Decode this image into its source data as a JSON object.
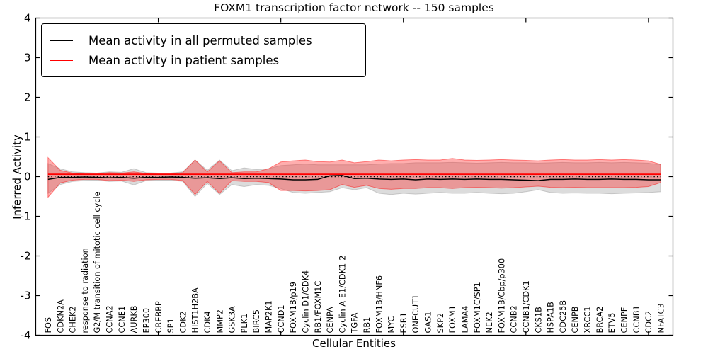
{
  "chart_data": {
    "type": "line",
    "title": "FOXM1 transcription factor network -- 150 samples",
    "xlabel": "Cellular Entities",
    "ylabel": "Inferred Activity",
    "ylim": [
      -4,
      4
    ],
    "xlim": [
      0,
      52
    ],
    "grid": false,
    "legend_position": "upper left",
    "yticks": [
      "4",
      "3",
      "2",
      "1",
      "0",
      "-1",
      "-2",
      "-3",
      "-4"
    ],
    "xticks": [
      10,
      20,
      30,
      40,
      50
    ],
    "zero_line": {
      "y": 0,
      "style": "dotted",
      "color": "#000000"
    },
    "categories": [
      "FOS",
      "CDKN2A",
      "CHEK2",
      "response to radiation",
      "G2/M transition of mitotic cell cycle",
      "CCNA2",
      "CCNE1",
      "AURKB",
      "EP300",
      "CREBBP",
      "SP1",
      "CDK2",
      "HIST1H2BA",
      "CDK4",
      "MMP2",
      "GSK3A",
      "PLK1",
      "BIRC5",
      "MAP2K1",
      "CCND1",
      "FOXM1B/p19",
      "Cyclin D1/CDK4",
      "RB1/FOXM1C",
      "CENPA",
      "Cyclin A-E1/CDK1-2",
      "TGFA",
      "RB1",
      "FOXM1B/HNF6",
      "MYC",
      "ESR1",
      "ONECUT1",
      "GAS1",
      "SKP2",
      "FOXM1",
      "LAMA4",
      "FOXM1C/SP1",
      "NEK2",
      "FOXM1B/Cbp/p300",
      "CCNB2",
      "CCNB1/CDK1",
      "CKS1B",
      "HSPA1B",
      "CDC25B",
      "CENPB",
      "XRCC1",
      "BRCA2",
      "ETV5",
      "CENPF",
      "CCNB1",
      "CDC2",
      "NFATC3"
    ],
    "series": [
      {
        "name": "Mean activity in all permuted samples",
        "color": "#000000",
        "values": [
          -0.07,
          -0.02,
          -0.02,
          -0.01,
          -0.02,
          -0.03,
          -0.02,
          -0.04,
          -0.02,
          -0.02,
          -0.01,
          -0.02,
          -0.04,
          -0.03,
          -0.05,
          -0.03,
          -0.05,
          -0.04,
          -0.05,
          -0.06,
          -0.08,
          -0.08,
          -0.07,
          0.02,
          0.03,
          -0.05,
          -0.04,
          -0.06,
          -0.07,
          -0.06,
          -0.08,
          -0.06,
          -0.07,
          -0.06,
          -0.07,
          -0.06,
          -0.07,
          -0.07,
          -0.08,
          -0.09,
          -0.1,
          -0.07,
          -0.07,
          -0.06,
          -0.07,
          -0.07,
          -0.06,
          -0.07,
          -0.07,
          -0.08,
          -0.08
        ]
      },
      {
        "name": "Mean activity in patient samples",
        "color": "#ff0000",
        "values": [
          0.06,
          0.06,
          0.06,
          0.06,
          0.06,
          0.06,
          0.06,
          0.06,
          0.06,
          0.06,
          0.06,
          0.06,
          0.06,
          0.06,
          0.06,
          0.06,
          0.06,
          0.06,
          0.06,
          0.06,
          0.06,
          0.06,
          0.06,
          0.06,
          0.06,
          0.06,
          0.06,
          0.06,
          0.06,
          0.06,
          0.06,
          0.06,
          0.06,
          0.06,
          0.06,
          0.06,
          0.06,
          0.06,
          0.06,
          0.06,
          0.06,
          0.06,
          0.06,
          0.06,
          0.06,
          0.06,
          0.06,
          0.06,
          0.06,
          0.06,
          0.06
        ]
      }
    ],
    "bands": [
      {
        "name": "permuted-range",
        "color": "#bfbfbf",
        "opacity": 0.55,
        "edge": "#aaaaaa",
        "edge_opacity": 0.6,
        "upper": [
          0.33,
          0.2,
          0.12,
          0.1,
          0.09,
          0.12,
          0.11,
          0.2,
          0.1,
          0.09,
          0.09,
          0.12,
          0.42,
          0.16,
          0.42,
          0.15,
          0.22,
          0.18,
          0.2,
          0.28,
          0.3,
          0.32,
          0.3,
          0.3,
          0.3,
          0.3,
          0.3,
          0.32,
          0.33,
          0.33,
          0.35,
          0.35,
          0.35,
          0.36,
          0.35,
          0.34,
          0.35,
          0.36,
          0.35,
          0.35,
          0.34,
          0.35,
          0.36,
          0.35,
          0.35,
          0.36,
          0.35,
          0.36,
          0.35,
          0.34,
          0.3
        ],
        "lower": [
          -0.42,
          -0.2,
          -0.12,
          -0.1,
          -0.09,
          -0.12,
          -0.11,
          -0.21,
          -0.1,
          -0.09,
          -0.09,
          -0.12,
          -0.5,
          -0.17,
          -0.45,
          -0.2,
          -0.25,
          -0.2,
          -0.22,
          -0.3,
          -0.4,
          -0.42,
          -0.4,
          -0.38,
          -0.28,
          -0.33,
          -0.28,
          -0.42,
          -0.45,
          -0.42,
          -0.44,
          -0.42,
          -0.4,
          -0.42,
          -0.42,
          -0.4,
          -0.42,
          -0.43,
          -0.42,
          -0.38,
          -0.33,
          -0.4,
          -0.42,
          -0.41,
          -0.42,
          -0.42,
          -0.43,
          -0.42,
          -0.41,
          -0.4,
          -0.38
        ]
      },
      {
        "name": "patient-range",
        "color": "#ff2a2a",
        "opacity": 0.38,
        "edge": "#ff0000",
        "edge_opacity": 0.45,
        "upper": [
          0.48,
          0.16,
          0.09,
          0.07,
          0.07,
          0.1,
          0.09,
          0.12,
          0.08,
          0.07,
          0.07,
          0.1,
          0.42,
          0.12,
          0.4,
          0.1,
          0.12,
          0.12,
          0.2,
          0.37,
          0.4,
          0.42,
          0.38,
          0.37,
          0.42,
          0.35,
          0.38,
          0.42,
          0.4,
          0.42,
          0.43,
          0.42,
          0.42,
          0.46,
          0.42,
          0.41,
          0.42,
          0.43,
          0.42,
          0.41,
          0.4,
          0.42,
          0.43,
          0.42,
          0.42,
          0.43,
          0.42,
          0.43,
          0.42,
          0.4,
          0.31
        ],
        "lower": [
          -0.52,
          -0.16,
          -0.09,
          -0.07,
          -0.07,
          -0.1,
          -0.09,
          -0.12,
          -0.08,
          -0.07,
          -0.07,
          -0.1,
          -0.45,
          -0.12,
          -0.42,
          -0.1,
          -0.12,
          -0.12,
          -0.15,
          -0.35,
          -0.35,
          -0.36,
          -0.35,
          -0.33,
          -0.2,
          -0.27,
          -0.22,
          -0.3,
          -0.32,
          -0.3,
          -0.3,
          -0.28,
          -0.28,
          -0.3,
          -0.28,
          -0.27,
          -0.28,
          -0.29,
          -0.28,
          -0.26,
          -0.24,
          -0.27,
          -0.28,
          -0.27,
          -0.28,
          -0.28,
          -0.28,
          -0.28,
          -0.27,
          -0.25,
          -0.15
        ]
      }
    ]
  }
}
